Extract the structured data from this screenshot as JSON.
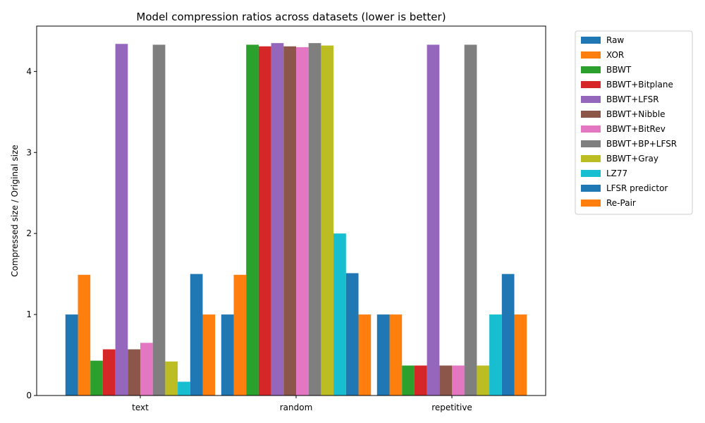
{
  "chart_data": {
    "type": "bar",
    "title": "Model compression ratios across datasets (lower is better)",
    "xlabel": "",
    "ylabel": "Compressed size / Original size",
    "ylim": [
      0,
      4.56
    ],
    "yticks": [
      "0",
      "1",
      "2",
      "3",
      "4"
    ],
    "categories": [
      "text",
      "random",
      "repetitive"
    ],
    "legend_position": "outside top-right",
    "grid": false,
    "series": [
      {
        "name": "Raw",
        "color": "#1f77b4",
        "values": [
          1.0,
          1.0,
          1.0
        ]
      },
      {
        "name": "XOR",
        "color": "#ff7f0e",
        "values": [
          1.49,
          1.49,
          1.0
        ]
      },
      {
        "name": "BBWT",
        "color": "#2ca02c",
        "values": [
          0.43,
          4.33,
          0.37
        ]
      },
      {
        "name": "BBWT+Bitplane",
        "color": "#d62728",
        "values": [
          0.57,
          4.31,
          0.37
        ]
      },
      {
        "name": "BBWT+LFSR",
        "color": "#9467bd",
        "values": [
          4.34,
          4.35,
          4.33
        ]
      },
      {
        "name": "BBWT+Nibble",
        "color": "#8c564b",
        "values": [
          0.57,
          4.31,
          0.37
        ]
      },
      {
        "name": "BBWT+BitRev",
        "color": "#e377c2",
        "values": [
          0.65,
          4.3,
          0.37
        ]
      },
      {
        "name": "BBWT+BP+LFSR",
        "color": "#7f7f7f",
        "values": [
          4.33,
          4.35,
          4.33
        ]
      },
      {
        "name": "BBWT+Gray",
        "color": "#bcbd22",
        "values": [
          0.42,
          4.32,
          0.37
        ]
      },
      {
        "name": "LZ77",
        "color": "#17becf",
        "values": [
          0.17,
          2.0,
          1.0
        ]
      },
      {
        "name": "LFSR predictor",
        "color": "#1f77b4",
        "values": [
          1.5,
          1.51,
          1.5
        ]
      },
      {
        "name": "Re-Pair",
        "color": "#ff7f0e",
        "values": [
          1.0,
          1.0,
          1.0
        ]
      }
    ]
  }
}
